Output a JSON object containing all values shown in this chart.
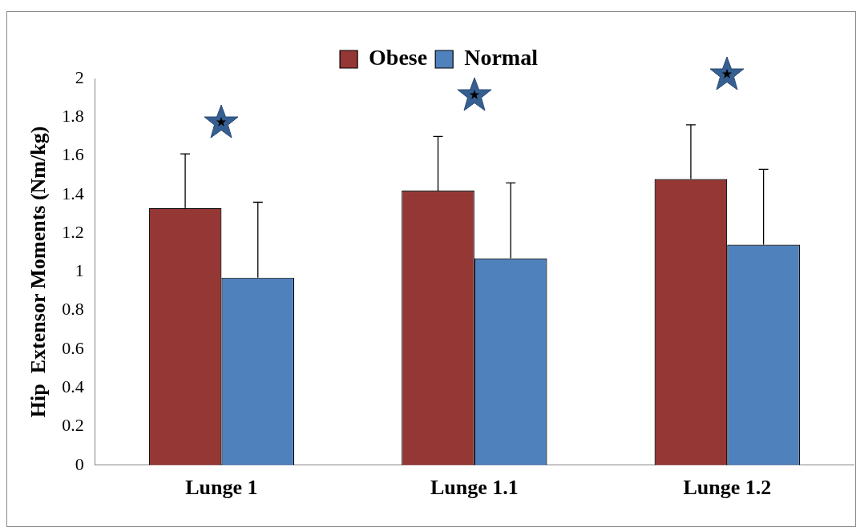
{
  "chart_data": {
    "type": "bar",
    "ylabel": "Hip  Extensor Moments (Nm/kg)",
    "categories": [
      "Lunge 1",
      "Lunge 1.1",
      "Lunge 1.2"
    ],
    "series": [
      {
        "name": "Obese",
        "color": "#953735",
        "values": [
          1.33,
          1.42,
          1.48
        ],
        "errors": [
          [
            1.33,
            1.61
          ],
          [
            1.42,
            1.7
          ],
          [
            1.48,
            1.76
          ]
        ]
      },
      {
        "name": "Normal",
        "color": "#4f81bd",
        "values": [
          0.97,
          1.07,
          1.14
        ],
        "errors": [
          [
            0.97,
            1.36
          ],
          [
            1.07,
            1.46
          ],
          [
            1.14,
            1.53
          ]
        ]
      }
    ],
    "ylim": [
      0,
      2
    ],
    "yticks": [
      0,
      0.2,
      0.4,
      0.6,
      0.8,
      1,
      1.2,
      1.4,
      1.6,
      1.8,
      2
    ],
    "grid": false,
    "legend": "top"
  }
}
